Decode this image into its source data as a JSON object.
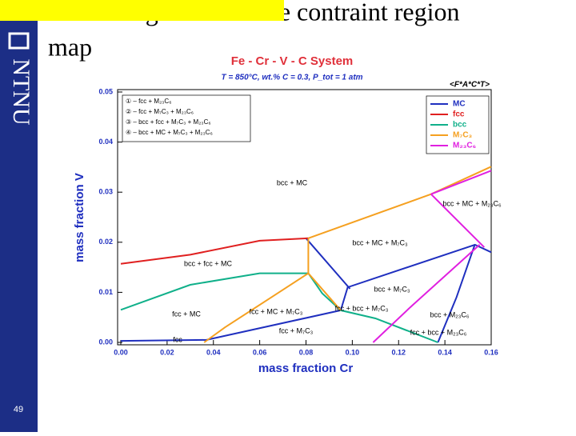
{
  "slide": {
    "title_line1": "Phase diagram – Active contraint region",
    "title_line2": "map",
    "logo": "NTNU",
    "number": "49"
  },
  "chart_data": {
    "type": "line",
    "title": "Fe - Cr - V - C System",
    "subtitle": "T = 850°C, wt.% C = 0.3, P_tot = 1 atm",
    "source": "<F*A*C*T>",
    "xlabel": "mass fraction Cr",
    "ylabel": "mass fraction V",
    "xlim": [
      0,
      0.16
    ],
    "ylim": [
      0,
      0.05
    ],
    "xticks": [
      {
        "value": 0,
        "label": "0.00"
      },
      0.02,
      0.04,
      0.06,
      0.08,
      {
        "value": 0.1,
        "label": "0.10"
      },
      0.12,
      0.14,
      0.16
    ],
    "yticks": [
      {
        "value": 0,
        "label": "0.00"
      },
      0.01,
      0.02,
      0.03,
      0.04,
      0.05
    ],
    "legend": "upper right",
    "key": [
      "① – fcc + M₂₃C₆",
      "② – fcc + M₇C₃ + M₂₃C₆",
      "③ – bcc + fcc + M₇C₃ + M₂₃C₆",
      "④ – bcc + MC + M₇C₃ + M₂₃C₆"
    ],
    "regions": [
      "bcc + MC",
      "bcc + fcc + MC",
      "bcc + MC + M₇C₃",
      "fcc + MC",
      "fcc + MC + M₇C₃",
      "bcc + M₇C₃",
      "fcc + bcc + M₇C₃",
      "fcc + M₇C₃",
      "bcc + MC + M₂₃C₆",
      "bcc + M₂₃C₆",
      "fcc + bcc + M₂₃C₆",
      "fcc"
    ],
    "series": [
      {
        "name": "MC",
        "color": "#1f2fbf",
        "x": [
          0,
          0.037,
          0.095,
          0.098,
          0.153,
          0.16,
          null,
          0.08,
          0.099,
          null,
          0.137,
          0.145,
          0.153
        ],
        "values": [
          0.0003,
          0.0005,
          0.0064,
          0.011,
          0.0195,
          0.018,
          null,
          0.0208,
          0.0107,
          null,
          0,
          0.009,
          0.0196
        ]
      },
      {
        "name": "fcc",
        "color": "#e02020",
        "x": [
          0,
          0.03,
          0.06,
          0.081
        ],
        "values": [
          0.0157,
          0.0175,
          0.0203,
          0.0208
        ]
      },
      {
        "name": "bcc",
        "color": "#10b08a",
        "x": [
          0,
          0.03,
          0.06,
          0.081,
          0.087,
          0.095,
          0.11,
          0.137
        ],
        "values": [
          0.0065,
          0.0115,
          0.0138,
          0.0138,
          0.0098,
          0.0064,
          0.0048,
          0
        ]
      },
      {
        "name": "M₇C₃",
        "color": "#f5a020",
        "x": [
          0.036,
          0.045,
          0.065,
          0.081,
          0.095,
          null,
          0.081,
          0.081,
          null,
          0.081,
          0.134,
          0.16
        ],
        "values": [
          0,
          0.003,
          0.009,
          0.0138,
          0.0064,
          null,
          0.0138,
          0.0208,
          null,
          0.0208,
          0.0296,
          0.0351
        ]
      },
      {
        "name": "M₂₃C₆",
        "color": "#e020e0",
        "x": [
          0.109,
          0.125,
          0.155,
          null,
          0.134,
          0.157,
          null,
          0.134,
          0.16
        ],
        "values": [
          0,
          0.007,
          0.0195,
          null,
          0.0296,
          0.019,
          null,
          0.0296,
          0.0343
        ]
      }
    ]
  }
}
